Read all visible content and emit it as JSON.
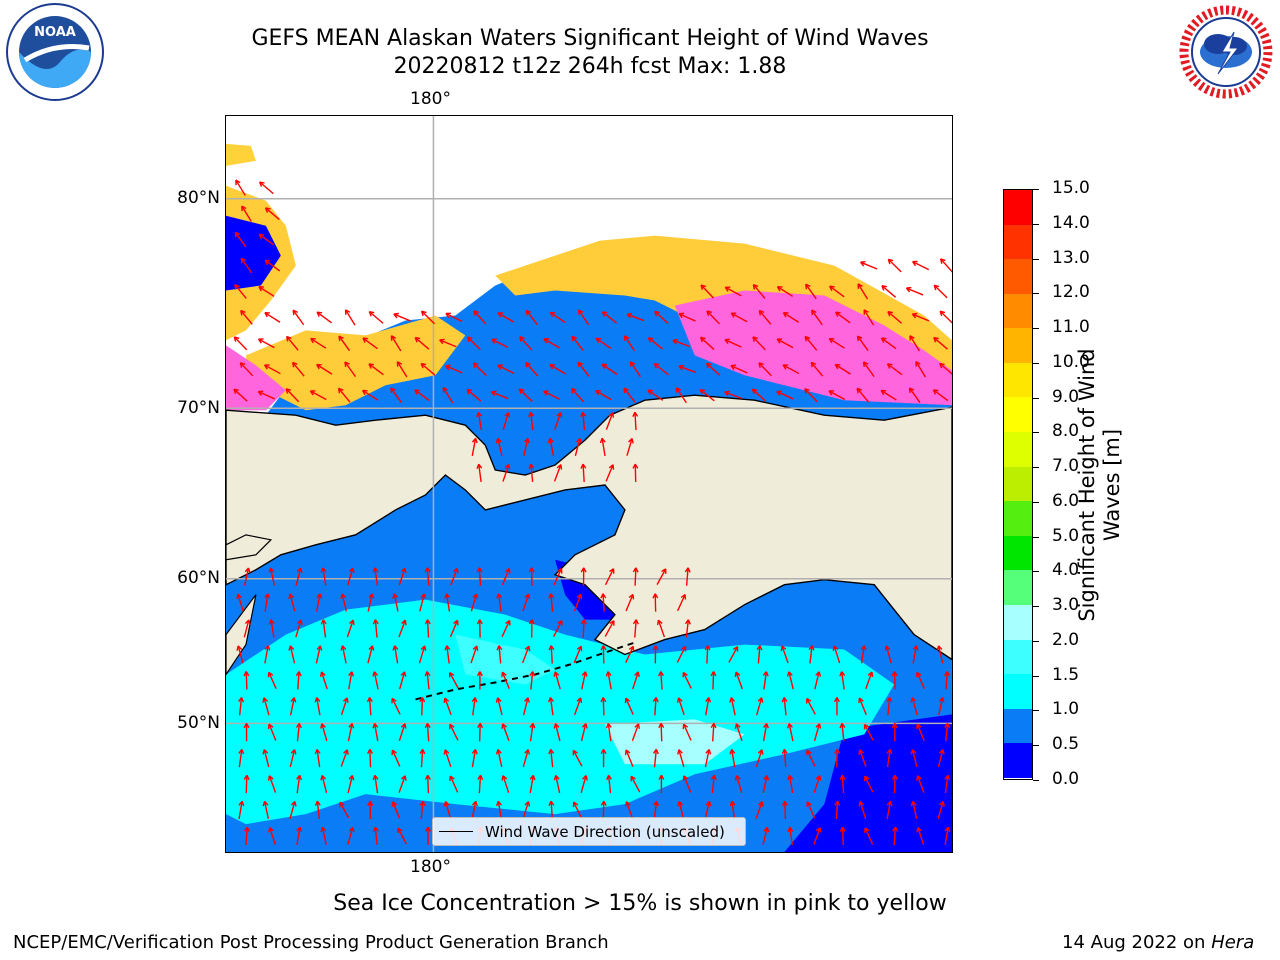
{
  "header": {
    "title_line1": "GEFS MEAN Alaskan Waters Significant Height of Wind Waves",
    "title_line2": "20220812 t12z 264h fcst   Max: 1.88"
  },
  "logos": {
    "left": {
      "text": "NOAA",
      "ring_text": "NATIONAL OCEANIC AND ATMOSPHERIC ADMINISTRATION · U.S. DEPARTMENT OF COMMERCE"
    },
    "right": {
      "ring_text": "NATIONAL WEATHER SERVICE"
    }
  },
  "map": {
    "lon_label_top": "180°",
    "lon_label_bottom": "180°",
    "lat_labels": [
      "80°N",
      "70°N",
      "60°N",
      "50°N"
    ],
    "legend_label": "Wind Wave Direction (unscaled)",
    "colors": {
      "land": "#efedda",
      "arrow": "#ff0000",
      "grid": "#b0b0b0"
    }
  },
  "colorbar": {
    "title": "Significant Height of Wind Waves [m]",
    "tick_labels": [
      "0.0",
      "0.5",
      "1.0",
      "1.5",
      "2.0",
      "3.0",
      "4.0",
      "5.0",
      "6.0",
      "7.0",
      "8.0",
      "9.0",
      "10.0",
      "11.0",
      "12.0",
      "13.0",
      "14.0",
      "15.0"
    ],
    "bin_colors": [
      "#0000ff",
      "#0a7cf6",
      "#00ffff",
      "#3dffff",
      "#a8ffff",
      "#55ff7a",
      "#00e600",
      "#55ee11",
      "#bbee00",
      "#ddff00",
      "#ffff00",
      "#ffe600",
      "#ffb400",
      "#ff8c00",
      "#ff5a00",
      "#ff3200",
      "#ff0000"
    ]
  },
  "footer": {
    "note": "Sea Ice Concentration > 15% is shown in pink to yellow",
    "credit_left": "NCEP/EMC/Verification Post Processing Product Generation Branch",
    "credit_right_prefix": "14 Aug 2022 on",
    "credit_right_host": "Hera"
  }
}
